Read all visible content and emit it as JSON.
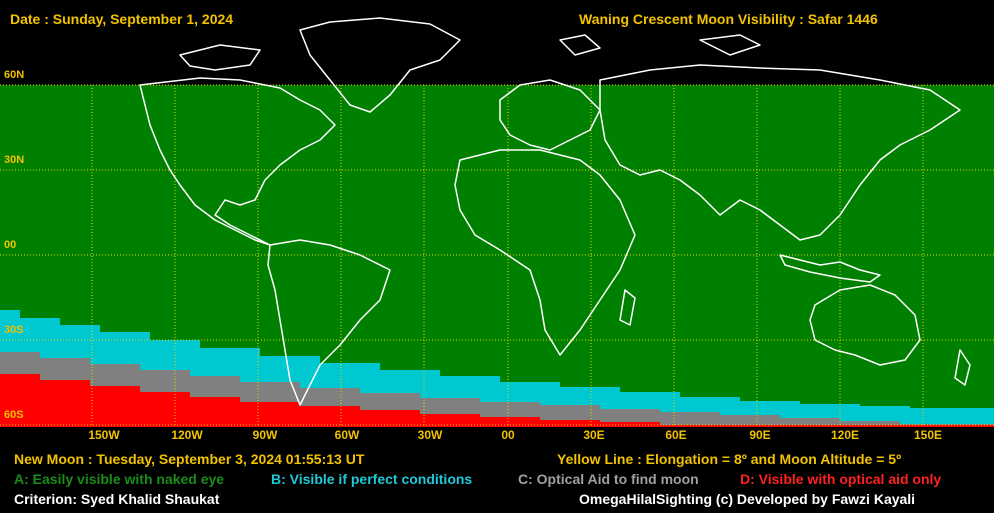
{
  "header": {
    "date": "Date : Sunday, September 1, 2024",
    "title": "Waning Crescent Moon Visibility : Safar 1446"
  },
  "lat_labels": [
    "60N",
    "30N",
    "00",
    "30S",
    "60S"
  ],
  "lon_labels": [
    "150W",
    "120W",
    "90W",
    "60W",
    "30W",
    "00",
    "30E",
    "60E",
    "90E",
    "120E",
    "150E"
  ],
  "footer": {
    "new_moon": "New Moon : Tuesday, September 3, 2024  01:55:13  UT",
    "yellow_line": "Yellow Line : Elongation = 8º  and Moon Altitude = 5º",
    "criterion": "Criterion: Syed Khalid Shaukat",
    "credit": "OmegaHilalSighting  (c)  Developed by Fawzi Kayali"
  },
  "legend": [
    {
      "text": "A: Easily visible with naked eye",
      "color": "#1a8c1a"
    },
    {
      "text": "B: Visible if perfect conditions",
      "color": "#20c8d8"
    },
    {
      "text": "C: Optical Aid to find moon",
      "color": "#a0a0a0"
    },
    {
      "text": "D: Visible with optical aid only",
      "color": "#ff2020"
    }
  ],
  "colors": {
    "zone_a": "#008000",
    "zone_b": "#00c8d0",
    "zone_c": "#808080",
    "zone_d": "#ff0000",
    "grid": "#e6d200",
    "coast": "#ffffff",
    "label": "#f2c200"
  }
}
